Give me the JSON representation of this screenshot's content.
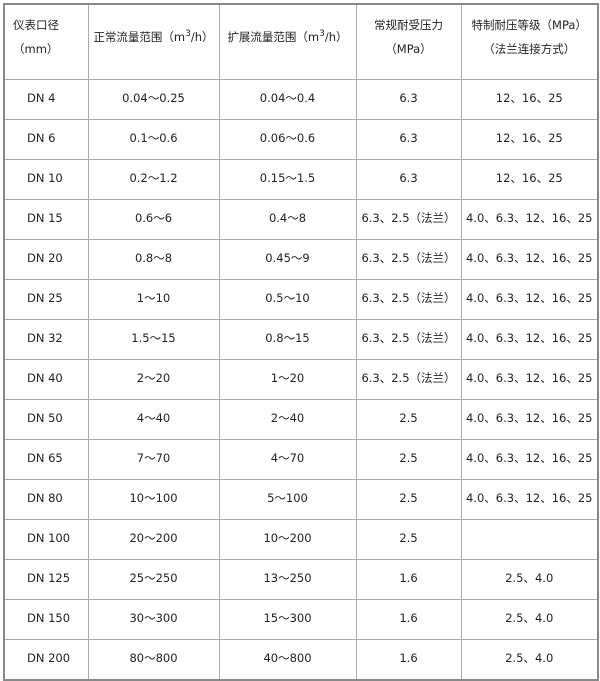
{
  "table": {
    "headers": [
      "仪表口径（mm）",
      "正常流量范围（m",
      "扩展流量范围（m",
      "常规耐受压力（MPa）",
      "特制耐压等级（MPa）（法兰连接方式）"
    ],
    "header_unit_sup": "3",
    "header_unit_tail": "/h）",
    "rows": [
      [
        "DN 4",
        "0.04～0.25",
        "0.04～0.4",
        "6.3",
        "12、16、25"
      ],
      [
        "DN 6",
        "0.1～0.6",
        "0.06～0.6",
        "6.3",
        "12、16、25"
      ],
      [
        "DN 10",
        "0.2～1.2",
        "0.15～1.5",
        "6.3",
        "12、16、25"
      ],
      [
        "DN 15",
        "0.6～6",
        "0.4～8",
        "6.3、2.5（法兰）",
        "4.0、6.3、12、16、25"
      ],
      [
        "DN 20",
        "0.8～8",
        "0.45～9",
        "6.3、2.5（法兰）",
        "4.0、6.3、12、16、25"
      ],
      [
        "DN 25",
        "1～10",
        "0.5～10",
        "6.3、2.5（法兰）",
        "4.0、6.3、12、16、25"
      ],
      [
        "DN 32",
        "1.5～15",
        "0.8～15",
        "6.3、2.5（法兰）",
        "4.0、6.3、12、16、25"
      ],
      [
        "DN 40",
        "2～20",
        "1～20",
        "6.3、2.5（法兰）",
        "4.0、6.3、12、16、25"
      ],
      [
        "DN 50",
        "4～40",
        "2～40",
        "2.5",
        "4.0、6.3、12、16、25"
      ],
      [
        "DN 65",
        "7～70",
        "4～70",
        "2.5",
        "4.0、6.3、12、16、25"
      ],
      [
        "DN 80",
        "10～100",
        "5～100",
        "2.5",
        "4.0、6.3、12、16、25"
      ],
      [
        "DN 100",
        "20～200",
        "10～200",
        "2.5",
        ""
      ],
      [
        "DN 125",
        "25～250",
        "13～250",
        "1.6",
        "2.5、4.0"
      ],
      [
        "DN 150",
        "30～300",
        "15～300",
        "1.6",
        "2.5、4.0"
      ],
      [
        "DN 200",
        "80～800",
        "40～800",
        "1.6",
        "2.5、4.0"
      ]
    ]
  }
}
